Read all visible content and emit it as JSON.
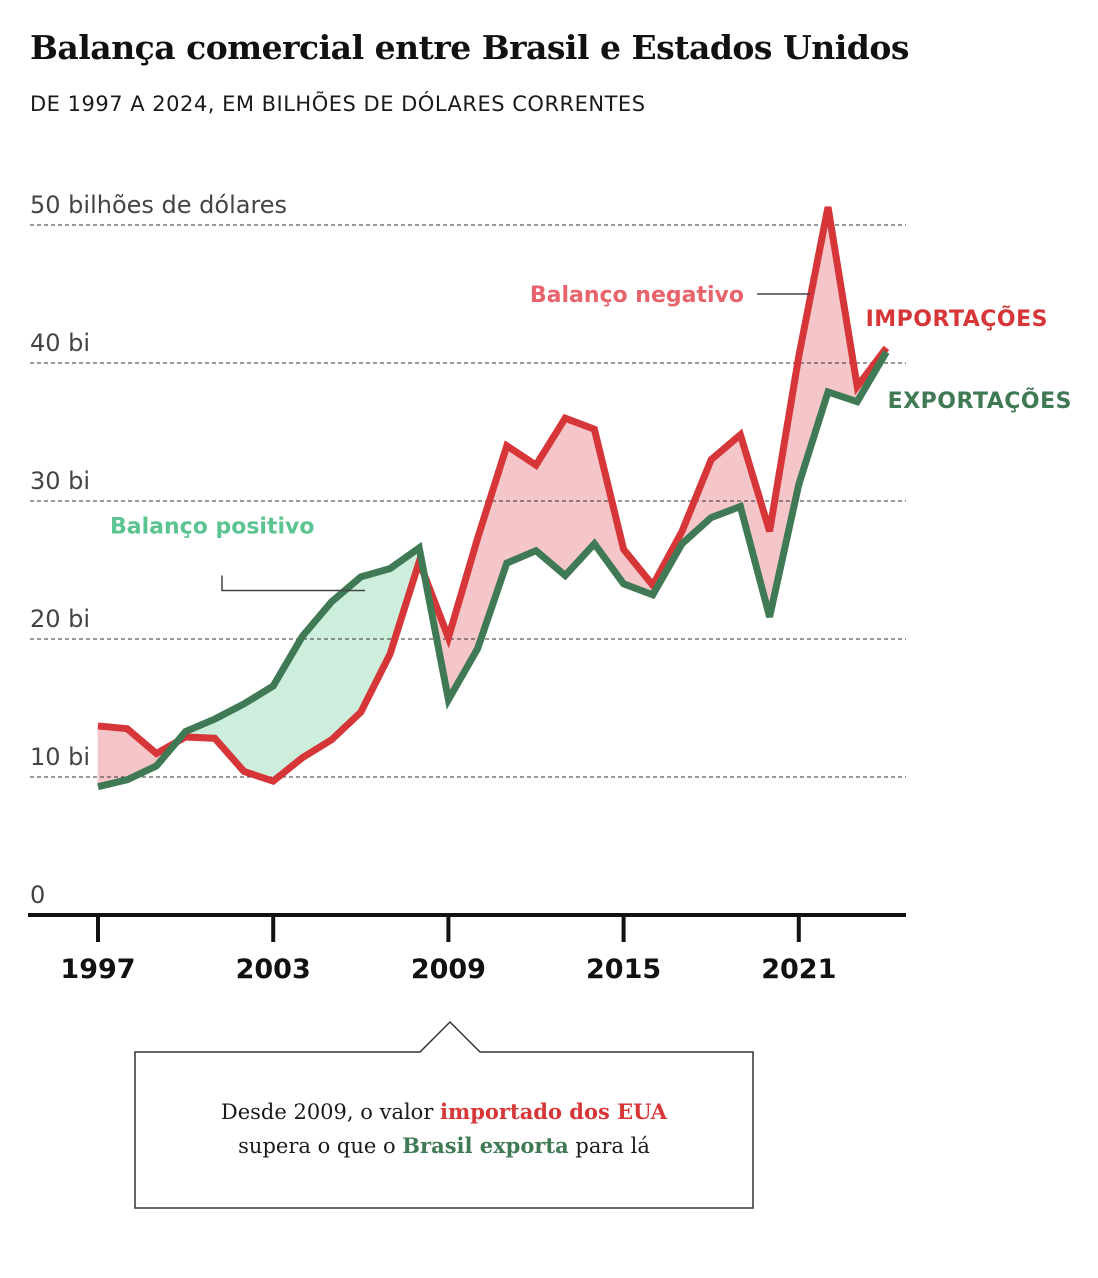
{
  "title": "Balança comercial entre Brasil e Estados Unidos",
  "subtitle": "DE 1997 A 2024, EM BILHÕES DE DÓLARES CORRENTES",
  "colors": {
    "imports": "#d63638",
    "exports": "#3f7a55",
    "negative_fill": "#f5c6c9",
    "positive_fill": "#cdeedd",
    "negative_label": "#e8646c",
    "positive_label": "#5cc491",
    "grid": "#333333",
    "tick_label": "#444444"
  },
  "annotations": {
    "negative": "Balanço negativo",
    "positive": "Balanço positivo"
  },
  "callout": {
    "line1_pre": "Desde 2009, o valor ",
    "line1_red": "importado dos EUA",
    "line2_pre": "supera o que o ",
    "line2_green": "Brasil exporta",
    "line2_post": " para lá"
  },
  "chart_data": {
    "type": "line",
    "title": "Balança comercial entre Brasil e Estados Unidos",
    "subtitle": "DE 1997 A 2024, EM BILHÕES DE DÓLARES CORRENTES",
    "x": [
      1997,
      1998,
      1999,
      2000,
      2001,
      2002,
      2003,
      2004,
      2005,
      2006,
      2007,
      2008,
      2009,
      2010,
      2011,
      2012,
      2013,
      2014,
      2015,
      2016,
      2017,
      2018,
      2019,
      2020,
      2021,
      2022,
      2023,
      2024
    ],
    "series": [
      {
        "name": "IMPORTAÇÕES",
        "values": [
          13.7,
          13.5,
          11.7,
          12.9,
          12.8,
          10.4,
          9.7,
          11.4,
          12.7,
          14.7,
          18.9,
          25.6,
          20.1,
          27.3,
          34.0,
          32.6,
          36.0,
          35.2,
          26.5,
          23.9,
          27.8,
          33.0,
          34.8,
          27.8,
          40.5,
          51.3,
          38.3,
          41.1
        ]
      },
      {
        "name": "EXPORTAÇÕES",
        "values": [
          9.3,
          9.8,
          10.8,
          13.3,
          14.2,
          15.3,
          16.6,
          20.2,
          22.7,
          24.5,
          25.1,
          26.6,
          15.6,
          19.3,
          25.5,
          26.4,
          24.6,
          26.9,
          24.0,
          23.2,
          26.9,
          28.8,
          29.6,
          21.6,
          31.2,
          37.9,
          37.2,
          40.8
        ]
      }
    ],
    "yticks": [
      {
        "value": 0,
        "label": "0"
      },
      {
        "value": 10,
        "label": "10 bi"
      },
      {
        "value": 20,
        "label": "20 bi"
      },
      {
        "value": 30,
        "label": "30 bi"
      },
      {
        "value": 40,
        "label": "40 bi"
      },
      {
        "value": 50,
        "label": "50 bilhões de dólares"
      }
    ],
    "xticks": [
      1997,
      2003,
      2009,
      2015,
      2021
    ],
    "ylim": [
      0,
      52
    ],
    "grid": true,
    "legend": "direct labels at line ends"
  }
}
